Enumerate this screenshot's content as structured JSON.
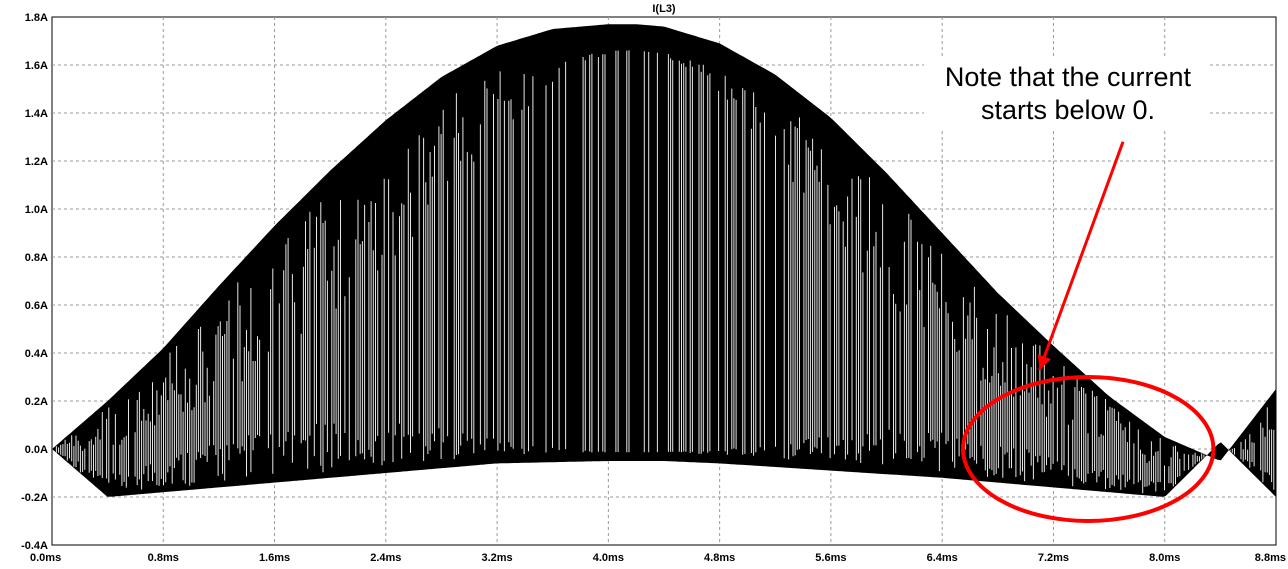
{
  "chart_data": {
    "type": "line",
    "title": "I(L3)",
    "xlabel": "",
    "ylabel": "",
    "xlim": [
      0,
      8.8
    ],
    "ylim": [
      -0.4,
      1.8
    ],
    "x_unit": "ms",
    "y_unit": "A",
    "x_ticks": [
      "0.0ms",
      "0.8ms",
      "1.6ms",
      "2.4ms",
      "3.2ms",
      "4.0ms",
      "4.8ms",
      "5.6ms",
      "6.4ms",
      "7.2ms",
      "8.0ms",
      "8.8ms"
    ],
    "y_ticks": [
      "1.8A",
      "1.6A",
      "1.4A",
      "1.2A",
      "1.0A",
      "0.8A",
      "0.6A",
      "0.4A",
      "0.2A",
      "0.0A",
      "-0.2A",
      "-0.4A"
    ],
    "grid": true,
    "series": [
      {
        "name": "",
        "color": "#000000",
        "envelope_upper": {
          "x": [
            0.0,
            0.4,
            0.8,
            1.2,
            1.6,
            2.0,
            2.4,
            2.8,
            3.2,
            3.6,
            4.0,
            4.2,
            4.4,
            4.8,
            5.2,
            5.6,
            6.0,
            6.4,
            6.8,
            7.2,
            7.6,
            8.0,
            8.4,
            8.8
          ],
          "y": [
            0.0,
            0.2,
            0.42,
            0.68,
            0.93,
            1.16,
            1.37,
            1.55,
            1.68,
            1.75,
            1.77,
            1.77,
            1.76,
            1.69,
            1.56,
            1.38,
            1.15,
            0.9,
            0.65,
            0.43,
            0.22,
            0.05,
            -0.05,
            0.25
          ]
        },
        "envelope_lower": {
          "x": [
            0.0,
            0.4,
            0.8,
            1.6,
            2.4,
            3.2,
            4.0,
            4.4,
            4.8,
            5.6,
            6.4,
            7.2,
            8.0,
            8.4,
            8.8
          ],
          "y": [
            0.0,
            -0.2,
            -0.18,
            -0.14,
            -0.1,
            -0.06,
            -0.05,
            -0.05,
            -0.06,
            -0.09,
            -0.12,
            -0.16,
            -0.2,
            0.03,
            -0.2
          ]
        }
      }
    ],
    "annotations": [
      {
        "type": "text",
        "lines": [
          "Note that the current",
          "starts below 0."
        ],
        "color": "#000000"
      },
      {
        "type": "arrow",
        "color": "#ff0000",
        "from_data": [
          7.7,
          1.28
        ],
        "to_data": [
          7.1,
          0.33
        ]
      },
      {
        "type": "ellipse",
        "color": "#ff0000",
        "center_data": [
          7.45,
          0.0
        ],
        "radius_x_data": 1.8,
        "radius_y_data": 0.3
      }
    ]
  }
}
